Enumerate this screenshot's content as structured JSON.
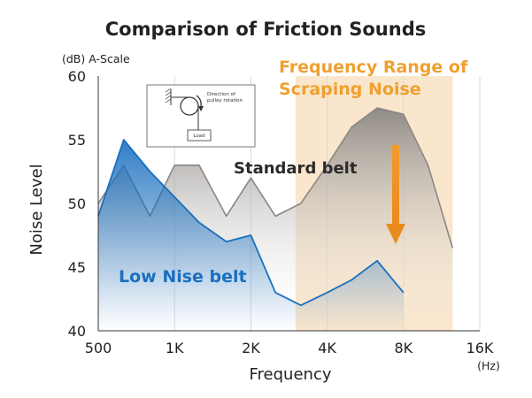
{
  "chart_data": {
    "type": "area",
    "title": "Comparison of Friction Sounds",
    "ylabel": "Noise Level",
    "y_unit": "(dB) A-Scale",
    "xlabel": "Frequency",
    "x_unit": "(Hz)",
    "x_scale": "log",
    "xlim": [
      500,
      16000
    ],
    "ylim": [
      40,
      60
    ],
    "x_ticks": [
      {
        "value": 500,
        "label": "500"
      },
      {
        "value": 1000,
        "label": "1K"
      },
      {
        "value": 2000,
        "label": "2K"
      },
      {
        "value": 4000,
        "label": "4K"
      },
      {
        "value": 8000,
        "label": "8K"
      },
      {
        "value": 16000,
        "label": "16K"
      }
    ],
    "y_ticks": [
      40,
      45,
      50,
      55,
      60
    ],
    "grid": "vertical",
    "highlight_band": {
      "label_line1": "Frequency Range of",
      "label_line2": "Scraping Noise",
      "x_range": [
        3000,
        12500
      ],
      "color": "#f9e6cc"
    },
    "series": [
      {
        "name": "Standard belt",
        "color": "#8c8784",
        "x": [
          500,
          630,
          800,
          1000,
          1250,
          1600,
          2000,
          2500,
          3150,
          4000,
          5000,
          6300,
          8000,
          10000,
          12500
        ],
        "values": [
          50,
          53,
          49,
          53,
          53,
          49,
          52,
          49,
          50,
          53,
          56,
          57.5,
          57,
          53,
          46.5
        ]
      },
      {
        "name": "Low Nise belt",
        "color": "#1a6fbf",
        "x": [
          500,
          630,
          800,
          1000,
          1250,
          1600,
          2000,
          2500,
          3150,
          4000,
          5000,
          6300,
          8000
        ],
        "values": [
          49,
          55,
          52.5,
          50.5,
          48.5,
          47,
          47.5,
          43,
          42,
          43,
          44,
          45.5,
          43
        ]
      }
    ],
    "inset": {
      "text_direction": "Direction of",
      "text_pulley": "pulley rotation",
      "text_load": "Load"
    }
  }
}
